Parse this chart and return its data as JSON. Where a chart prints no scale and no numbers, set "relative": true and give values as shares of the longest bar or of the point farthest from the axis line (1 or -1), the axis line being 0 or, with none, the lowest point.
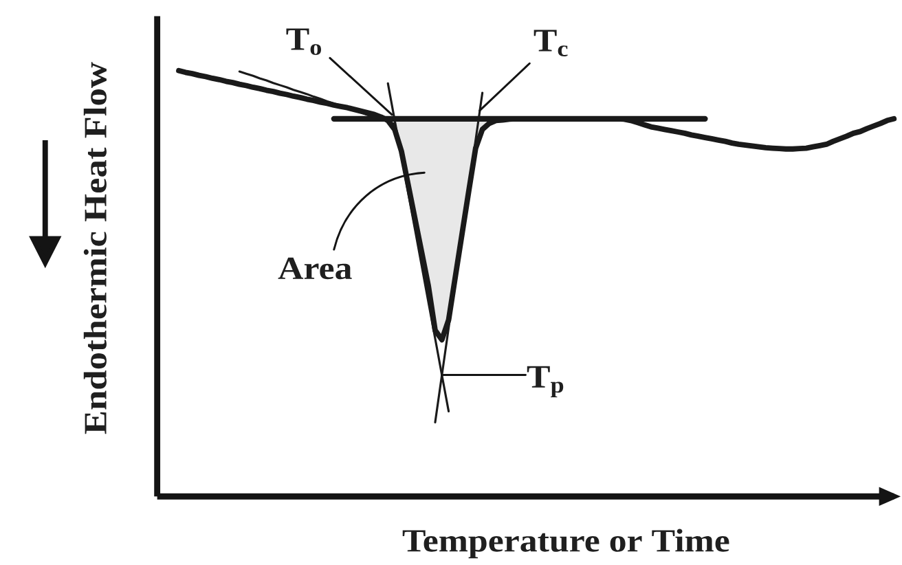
{
  "chart_data": {
    "type": "line",
    "relative": true,
    "xlabel": "Temperature or Time",
    "ylabel": "Endothermic Heat Flow",
    "annotations": [
      "T$_{o}$",
      "T$_{c}$",
      "Area",
      "T$_{p}$"
    ],
    "categories": [
      null,
      null,
      null,
      null,
      null,
      null,
      null,
      null,
      null,
      null,
      null,
      null,
      null,
      null,
      null,
      null,
      null,
      null,
      null,
      null,
      null,
      null,
      null,
      null,
      null,
      null,
      null,
      null,
      null,
      null,
      null,
      null,
      null,
      null,
      null,
      null,
      null,
      null,
      null,
      null,
      null,
      null,
      null,
      null,
      null,
      null,
      null,
      null,
      null,
      null,
      null,
      null,
      null,
      null,
      null,
      null,
      null,
      null,
      null,
      null,
      null,
      null,
      null,
      null,
      null,
      null,
      null,
      null,
      null,
      null,
      null,
      null,
      null,
      null,
      null,
      null,
      null,
      null,
      null,
      null,
      null,
      null,
      null,
      null,
      null,
      null,
      null,
      null,
      null,
      null,
      null,
      null,
      null,
      null,
      null,
      null,
      null,
      null,
      null,
      null,
      null,
      null,
      null,
      null,
      null,
      null,
      null
    ],
    "series": [
      {
        "color": "#1a1a1a",
        "values": [
          1.0,
          0.996,
          0.993,
          0.989,
          0.986,
          0.982,
          0.979,
          0.975,
          0.972,
          0.968,
          0.965,
          0.961,
          0.958,
          0.954,
          0.951,
          0.947,
          0.944,
          0.94,
          0.937,
          0.933,
          0.93,
          0.926,
          0.923,
          0.919,
          0.916,
          0.913,
          0.909,
          0.905,
          0.901,
          0.897,
          0.891,
          0.883,
          0.862,
          0.811,
          0.732,
          0.653,
          0.574,
          0.494,
          0.39,
          0.368,
          0.415,
          0.517,
          0.618,
          0.719,
          0.818,
          0.862,
          0.876,
          0.883,
          0.884,
          0.886,
          0.887,
          0.887,
          0.887,
          0.887,
          0.887,
          0.887,
          0.887,
          0.887,
          0.887,
          0.887,
          0.887,
          0.887,
          0.887,
          0.887,
          0.887,
          0.887,
          0.886,
          0.883,
          0.878,
          0.873,
          0.868,
          0.865,
          0.862,
          0.859,
          0.856,
          0.853,
          0.849,
          0.846,
          0.843,
          0.84,
          0.837,
          0.834,
          0.83,
          0.827,
          0.825,
          0.823,
          0.821,
          0.819,
          0.818,
          0.817,
          0.816,
          0.816,
          0.817,
          0.818,
          0.821,
          0.824,
          0.827,
          0.834,
          0.84,
          0.846,
          0.853,
          0.857,
          0.864,
          0.87,
          0.876,
          0.883,
          0.887
        ],
        "lower": [
          null,
          null,
          null,
          null,
          null,
          null,
          null,
          null,
          null,
          null,
          null,
          null,
          null,
          null,
          null,
          null,
          null,
          null,
          null,
          null,
          null,
          null,
          null,
          null,
          null,
          null,
          null,
          null,
          null,
          null,
          null,
          0.883,
          0.862,
          0.811,
          0.732,
          0.653,
          0.574,
          0.494,
          0.39,
          0.368,
          0.415,
          0.517,
          0.618,
          0.719,
          0.818,
          0.862,
          0.876,
          null,
          null,
          null,
          null,
          null,
          null,
          null,
          null,
          null,
          null,
          null,
          null,
          null,
          null,
          null,
          null,
          null,
          null,
          null,
          null,
          null,
          null,
          null,
          null,
          null,
          null,
          null,
          null,
          null,
          null,
          null,
          null,
          null,
          null,
          null,
          null,
          null,
          null,
          null,
          null,
          null,
          null,
          null,
          null,
          null,
          null,
          null,
          null,
          null,
          null,
          null,
          null,
          null,
          null,
          null,
          null,
          null,
          null,
          null,
          null
        ],
        "upper": [
          null,
          null,
          null,
          null,
          null,
          null,
          null,
          null,
          null,
          null,
          null,
          null,
          null,
          null,
          null,
          null,
          null,
          null,
          null,
          null,
          null,
          null,
          null,
          null,
          null,
          null,
          null,
          null,
          null,
          null,
          null,
          0.887,
          0.887,
          0.887,
          0.887,
          0.887,
          0.887,
          0.887,
          0.887,
          0.887,
          0.887,
          0.887,
          0.887,
          0.887,
          0.887,
          0.887,
          0.887,
          null,
          null,
          null,
          null,
          null,
          null,
          null,
          null,
          null,
          null,
          null,
          null,
          null,
          null,
          null,
          null,
          null,
          null,
          null,
          null,
          null,
          null,
          null,
          null,
          null,
          null,
          null,
          null,
          null,
          null,
          null,
          null,
          null,
          null,
          null,
          null,
          null,
          null,
          null,
          null,
          null,
          null,
          null,
          null,
          null,
          null,
          null,
          null,
          null,
          null,
          null,
          null,
          null,
          null,
          null,
          null,
          null,
          null,
          null,
          null
        ]
      },
      {
        "color": "#1a1a1a",
        "values": [
          null,
          null,
          null,
          null,
          null,
          null,
          null,
          null,
          null,
          null,
          null,
          null,
          null,
          null,
          null,
          null,
          null,
          null,
          null,
          null,
          null,
          null,
          null,
          0.887,
          0.887,
          0.887,
          0.887,
          0.887,
          0.887,
          0.887,
          0.887,
          0.887,
          0.887,
          0.887,
          0.887,
          0.887,
          0.887,
          0.887,
          0.887,
          0.887,
          0.887,
          0.887,
          0.887,
          0.887,
          0.887,
          0.887,
          0.887,
          0.887,
          0.887,
          0.887,
          0.887,
          0.887,
          0.887,
          0.887,
          0.887,
          0.887,
          0.887,
          0.887,
          0.887,
          0.887,
          0.887,
          0.887,
          0.887,
          0.887,
          0.887,
          0.887,
          0.887,
          0.887,
          0.887,
          0.887,
          0.887,
          0.887,
          0.887,
          0.887,
          0.887,
          0.887,
          0.887,
          0.887,
          0.887,
          null,
          null,
          null,
          null,
          null,
          null,
          null,
          null,
          null,
          null,
          null,
          null,
          null,
          null,
          null,
          null,
          null,
          null,
          null,
          null,
          null,
          null,
          null,
          null,
          null,
          null,
          null,
          null
        ]
      },
      {
        "color": "#1a1a1a",
        "values": [
          null,
          null,
          null,
          null,
          null,
          null,
          null,
          null,
          null,
          null,
          null,
          null,
          null,
          null,
          null,
          null,
          null,
          null,
          null,
          null,
          null,
          null,
          null,
          null,
          null,
          null,
          null,
          null,
          null,
          null,
          null,
          0.97,
          0.884,
          0.799,
          0.713,
          0.628,
          0.542,
          0.456,
          0.371,
          0.285,
          0.2,
          null,
          null,
          null,
          null,
          null,
          null,
          null,
          null,
          null,
          null,
          null,
          null,
          null,
          null,
          null,
          null,
          null,
          null,
          null,
          null,
          null,
          null,
          null,
          null,
          null,
          null,
          null,
          null,
          null,
          null,
          null,
          null,
          null,
          null,
          null,
          null,
          null,
          null,
          null,
          null,
          null,
          null,
          null,
          null,
          null,
          null,
          null,
          null,
          null,
          null,
          null,
          null,
          null,
          null,
          null,
          null,
          null,
          null,
          null,
          null,
          null,
          null,
          null,
          null,
          null,
          null
        ]
      },
      {
        "color": "#1a1a1a",
        "values": [
          null,
          null,
          null,
          null,
          null,
          null,
          null,
          null,
          null,
          null,
          null,
          null,
          null,
          null,
          null,
          null,
          null,
          null,
          null,
          null,
          null,
          null,
          null,
          null,
          null,
          null,
          null,
          null,
          null,
          null,
          null,
          null,
          null,
          null,
          null,
          null,
          null,
          null,
          0.174,
          0.285,
          0.396,
          0.507,
          0.618,
          0.726,
          0.837,
          0.948,
          null,
          null,
          null,
          null,
          null,
          null,
          null,
          null,
          null,
          null,
          null,
          null,
          null,
          null,
          null,
          null,
          null,
          null,
          null,
          null,
          null,
          null,
          null,
          null,
          null,
          null,
          null,
          null,
          null,
          null,
          null,
          null,
          null,
          null,
          null,
          null,
          null,
          null,
          null,
          null,
          null,
          null,
          null,
          null,
          null,
          null,
          null,
          null,
          null,
          null,
          null,
          null,
          null,
          null,
          null,
          null,
          null,
          null,
          null,
          null,
          null
        ]
      },
      {
        "color": "#1a1a1a",
        "values": [
          null,
          null,
          null,
          null,
          null,
          null,
          null,
          null,
          null,
          0.998,
          0.993,
          0.988,
          0.982,
          0.977,
          0.971,
          0.966,
          0.961,
          0.955,
          0.95,
          0.945,
          0.939,
          0.934,
          0.928,
          0.923,
          0.918,
          0.913,
          0.907,
          0.902,
          0.896,
          0.891,
          0.886,
          0.88,
          0.875,
          null,
          null,
          null,
          null,
          null,
          null,
          null,
          null,
          null,
          null,
          null,
          null,
          null,
          null,
          null,
          null,
          null,
          null,
          null,
          null,
          null,
          null,
          null,
          null,
          null,
          null,
          null,
          null,
          null,
          null,
          null,
          null,
          null,
          null,
          null,
          null,
          null,
          null,
          null,
          null,
          null,
          null,
          null,
          null,
          null,
          null,
          null,
          null,
          null,
          null,
          null,
          null,
          null,
          null,
          null,
          null,
          null,
          null,
          null,
          null,
          null,
          null,
          null,
          null,
          null,
          null,
          null,
          null,
          null,
          null,
          null,
          null,
          null,
          null
        ]
      }
    ]
  }
}
